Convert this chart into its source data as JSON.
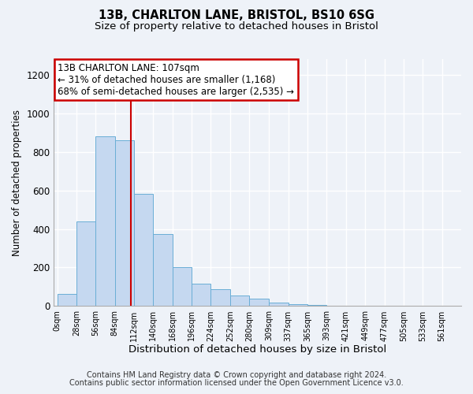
{
  "title_line1": "13B, CHARLTON LANE, BRISTOL, BS10 6SG",
  "title_line2": "Size of property relative to detached houses in Bristol",
  "xlabel": "Distribution of detached houses by size in Bristol",
  "ylabel": "Number of detached properties",
  "bar_left_edges": [
    0,
    28,
    56,
    84,
    112,
    140,
    168,
    196,
    224,
    252,
    280,
    309,
    337,
    365,
    393,
    421,
    449,
    477,
    505,
    533
  ],
  "bar_widths": [
    28,
    28,
    28,
    28,
    28,
    28,
    28,
    28,
    28,
    28,
    29,
    28,
    28,
    28,
    28,
    28,
    28,
    28,
    28,
    28
  ],
  "bar_heights": [
    65,
    440,
    880,
    860,
    580,
    375,
    200,
    115,
    88,
    55,
    40,
    18,
    10,
    5,
    3,
    1,
    0,
    0,
    0,
    0
  ],
  "bar_color": "#c5d8f0",
  "bar_edgecolor": "#6aaed6",
  "bar_linewidth": 0.7,
  "xtick_labels": [
    "0sqm",
    "28sqm",
    "56sqm",
    "84sqm",
    "112sqm",
    "140sqm",
    "168sqm",
    "196sqm",
    "224sqm",
    "252sqm",
    "280sqm",
    "309sqm",
    "337sqm",
    "365sqm",
    "393sqm",
    "421sqm",
    "449sqm",
    "477sqm",
    "505sqm",
    "533sqm",
    "561sqm"
  ],
  "xtick_positions": [
    0,
    28,
    56,
    84,
    112,
    140,
    168,
    196,
    224,
    252,
    280,
    309,
    337,
    365,
    393,
    421,
    449,
    477,
    505,
    533,
    561
  ],
  "ylim": [
    0,
    1280
  ],
  "xlim": [
    -5,
    589
  ],
  "yticks": [
    0,
    200,
    400,
    600,
    800,
    1000,
    1200
  ],
  "property_line_x": 107,
  "property_line_color": "#cc0000",
  "annotation_text": "13B CHARLTON LANE: 107sqm\n← 31% of detached houses are smaller (1,168)\n68% of semi-detached houses are larger (2,535) →",
  "annotation_box_color": "#cc0000",
  "annotation_bg": "#ffffff",
  "footer_line1": "Contains HM Land Registry data © Crown copyright and database right 2024.",
  "footer_line2": "Contains public sector information licensed under the Open Government Licence v3.0.",
  "background_color": "#eef2f8",
  "grid_color": "#ffffff",
  "title_fontsize": 10.5,
  "subtitle_fontsize": 9.5,
  "xlabel_fontsize": 9.5,
  "ylabel_fontsize": 8.5,
  "xtick_fontsize": 7,
  "ytick_fontsize": 8.5,
  "footer_fontsize": 7,
  "ann_fontsize": 8.5
}
